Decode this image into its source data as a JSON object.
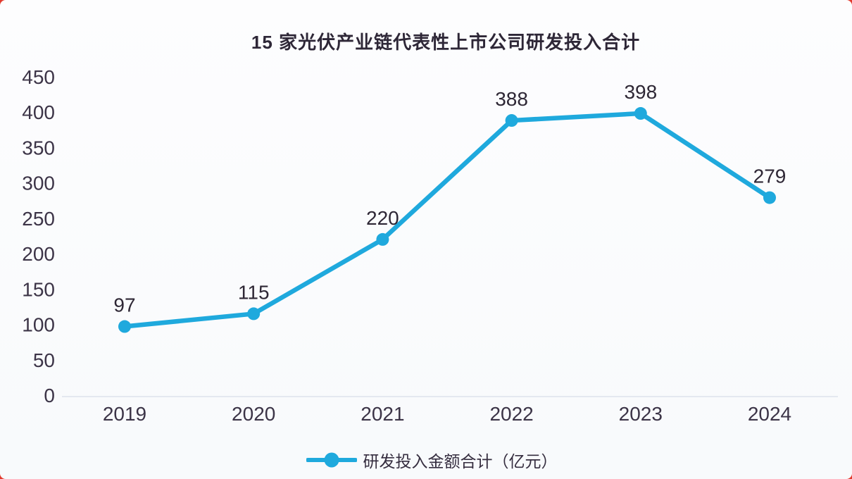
{
  "colors": {
    "page_background": "#e23a2e",
    "card_background": "#fcfdfe",
    "line": "#1fa9dd",
    "marker": "#1fa9dd",
    "title_text": "#2e2737",
    "tick_text": "#3c3447",
    "data_label_text": "#2e2735",
    "axis_line": "#dde2ec"
  },
  "chart_data": {
    "type": "line",
    "title": "15 家光伏产业链代表性上市公司研发投入合计",
    "categories": [
      "2019",
      "2020",
      "2021",
      "2022",
      "2023",
      "2024"
    ],
    "series": [
      {
        "name": "研发投入金额合计（亿元）",
        "values": [
          97,
          115,
          220,
          388,
          398,
          279
        ]
      }
    ],
    "data_labels_visible": true,
    "y_ticks": [
      0,
      50,
      100,
      150,
      200,
      250,
      300,
      350,
      400,
      450
    ],
    "ylim": [
      0,
      450
    ],
    "xlabel": "",
    "ylabel": "",
    "grid": false,
    "legend_position": "bottom",
    "marker_shape": "circle"
  }
}
